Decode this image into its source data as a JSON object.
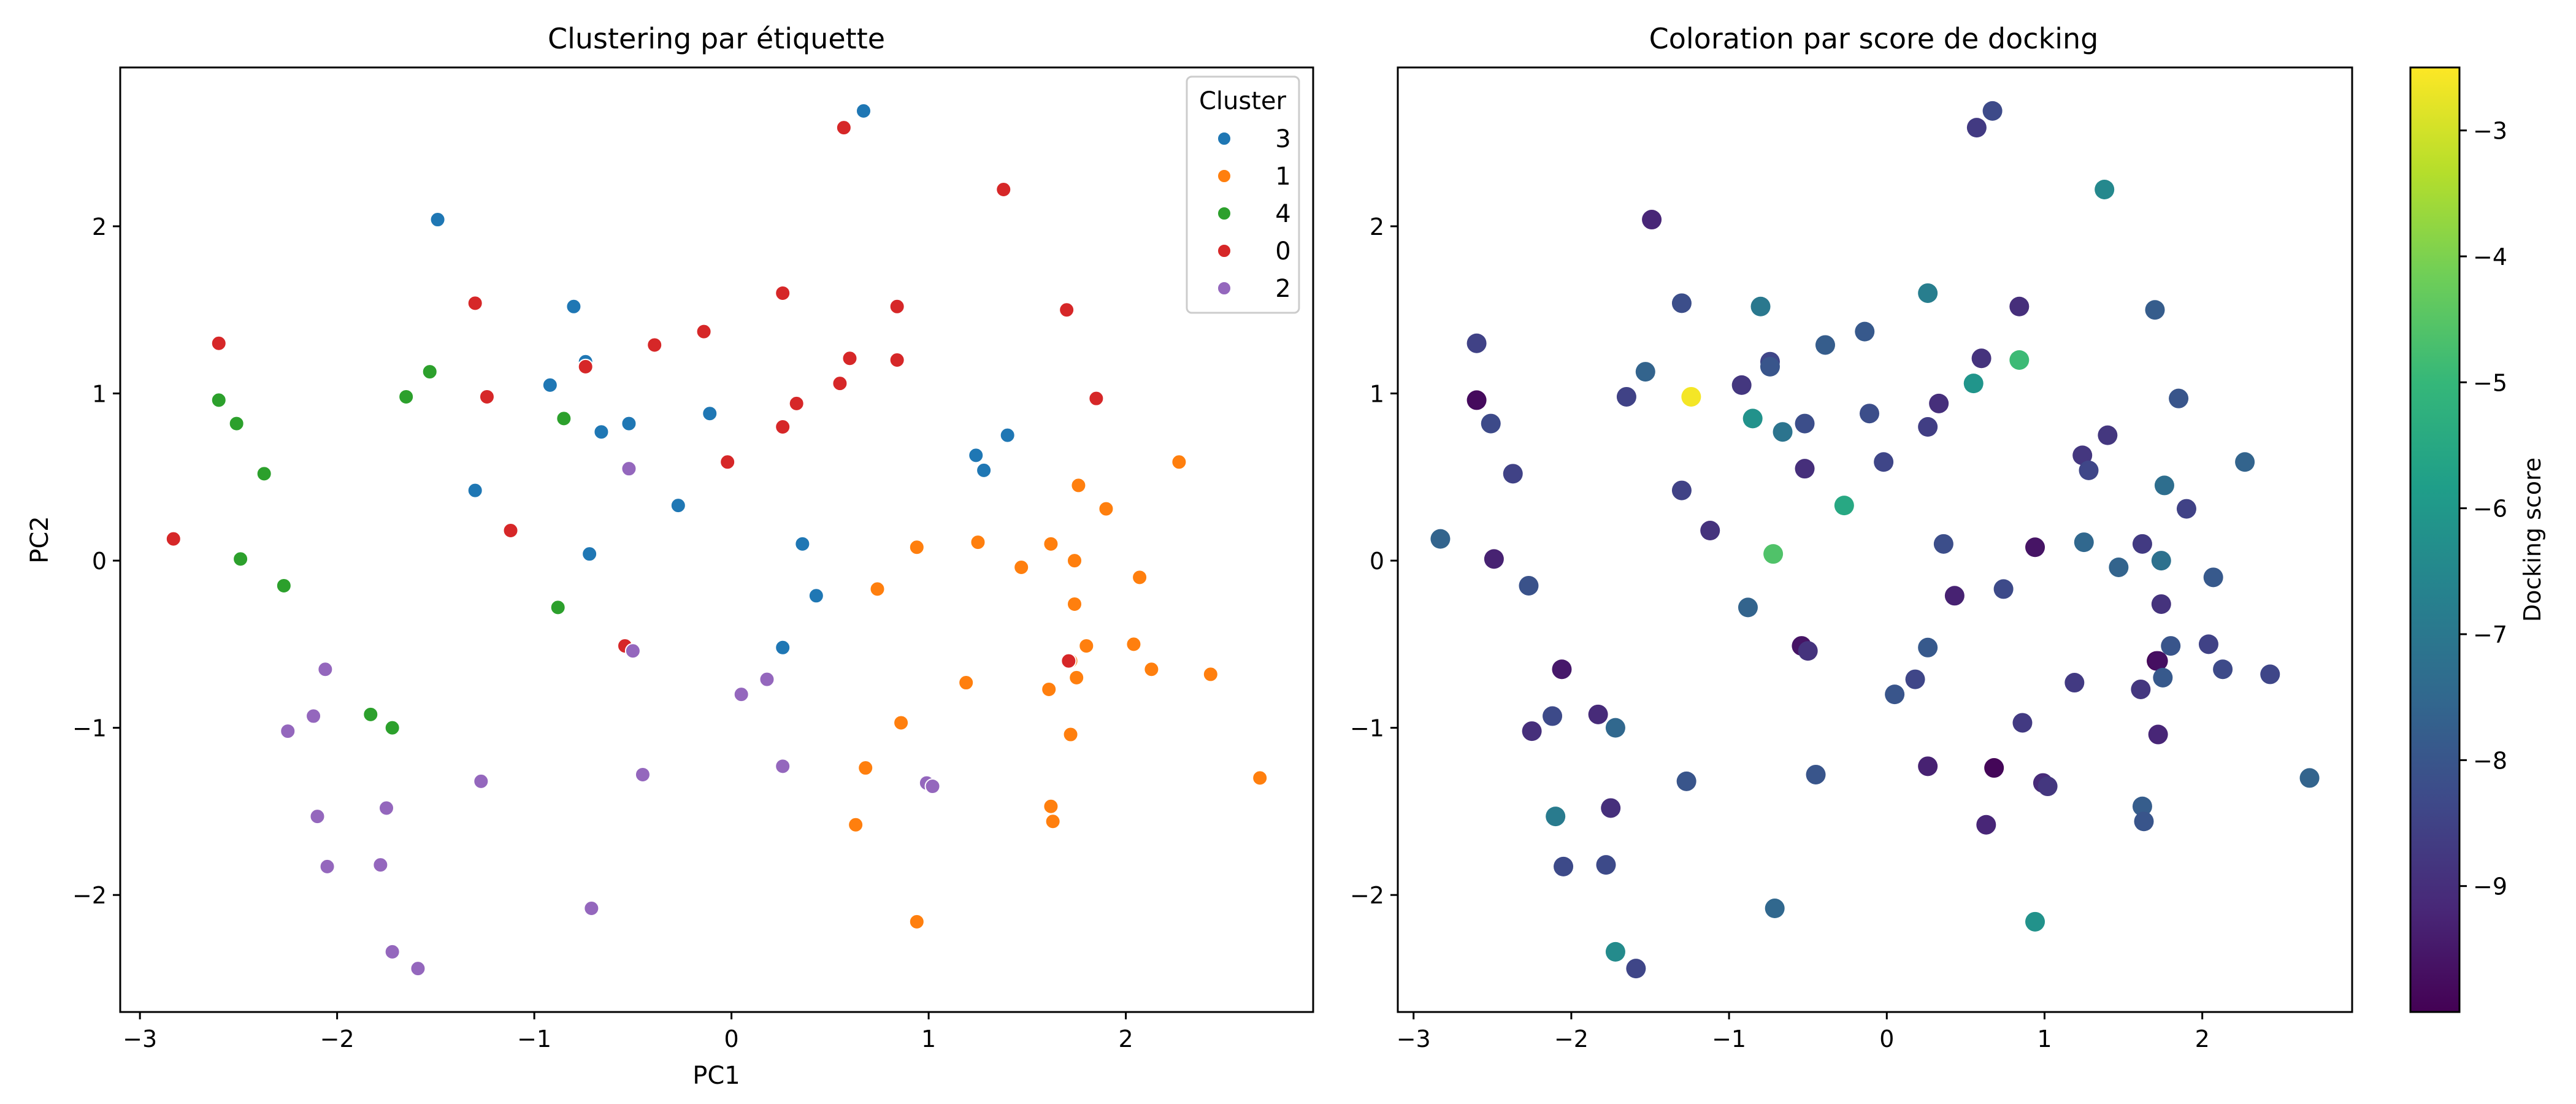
{
  "chart_data": [
    {
      "type": "scatter",
      "title": "Clustering par étiquette",
      "xlabel": "PC1",
      "ylabel": "PC2",
      "xlim": [
        -3.1,
        2.95
      ],
      "ylim": [
        -2.7,
        2.95
      ],
      "xticks": [
        -3,
        -2,
        -1,
        0,
        1,
        2
      ],
      "yticks": [
        -2,
        -1,
        0,
        1,
        2
      ],
      "grid": false,
      "legend": {
        "title": "Cluster",
        "placement": "top-right",
        "order": [
          "3",
          "1",
          "4",
          "0",
          "2"
        ]
      },
      "series": [
        {
          "name": "3",
          "color": "#1f77b4",
          "points": [
            [
              0.67,
              2.69
            ],
            [
              -1.49,
              2.04
            ],
            [
              -0.8,
              1.52
            ],
            [
              -0.74,
              1.19
            ],
            [
              -0.74,
              1.16
            ],
            [
              -0.92,
              1.05
            ],
            [
              -0.66,
              0.77
            ],
            [
              -0.52,
              0.82
            ],
            [
              -0.27,
              0.33
            ],
            [
              -0.11,
              0.88
            ],
            [
              -1.3,
              0.42
            ],
            [
              -0.72,
              0.04
            ],
            [
              0.36,
              0.1
            ],
            [
              0.43,
              -0.21
            ],
            [
              0.26,
              -0.52
            ],
            [
              1.24,
              0.63
            ],
            [
              1.28,
              0.54
            ],
            [
              1.4,
              0.75
            ]
          ]
        },
        {
          "name": "1",
          "color": "#ff7f0e",
          "points": [
            [
              2.27,
              0.59
            ],
            [
              1.76,
              0.45
            ],
            [
              1.9,
              0.31
            ],
            [
              1.25,
              0.11
            ],
            [
              0.94,
              0.08
            ],
            [
              1.62,
              0.1
            ],
            [
              1.74,
              0.0
            ],
            [
              1.47,
              -0.04
            ],
            [
              2.07,
              -0.1
            ],
            [
              0.74,
              -0.17
            ],
            [
              1.74,
              -0.26
            ],
            [
              2.04,
              -0.5
            ],
            [
              1.8,
              -0.51
            ],
            [
              1.72,
              -0.6
            ],
            [
              2.13,
              -0.65
            ],
            [
              2.43,
              -0.68
            ],
            [
              1.75,
              -0.7
            ],
            [
              1.19,
              -0.73
            ],
            [
              1.61,
              -0.77
            ],
            [
              0.86,
              -0.97
            ],
            [
              1.72,
              -1.04
            ],
            [
              0.68,
              -1.24
            ],
            [
              2.68,
              -1.3
            ],
            [
              1.62,
              -1.47
            ],
            [
              1.63,
              -1.56
            ],
            [
              0.63,
              -1.58
            ],
            [
              0.94,
              -2.16
            ]
          ]
        },
        {
          "name": "4",
          "color": "#2ca02c",
          "points": [
            [
              -2.6,
              0.96
            ],
            [
              -2.51,
              0.82
            ],
            [
              -2.37,
              0.52
            ],
            [
              -2.49,
              0.01
            ],
            [
              -2.27,
              -0.15
            ],
            [
              -1.53,
              1.13
            ],
            [
              -1.65,
              0.98
            ],
            [
              -0.85,
              0.85
            ],
            [
              -0.88,
              -0.28
            ],
            [
              -1.83,
              -0.92
            ],
            [
              -1.72,
              -1.0
            ]
          ]
        },
        {
          "name": "0",
          "color": "#d62728",
          "points": [
            [
              0.57,
              2.59
            ],
            [
              1.38,
              2.22
            ],
            [
              -1.3,
              1.54
            ],
            [
              0.26,
              1.6
            ],
            [
              0.84,
              1.52
            ],
            [
              1.7,
              1.5
            ],
            [
              -0.39,
              1.29
            ],
            [
              -0.14,
              1.37
            ],
            [
              0.6,
              1.21
            ],
            [
              0.84,
              1.2
            ],
            [
              0.55,
              1.06
            ],
            [
              -0.74,
              1.16
            ],
            [
              -1.24,
              0.98
            ],
            [
              1.85,
              0.97
            ],
            [
              0.33,
              0.94
            ],
            [
              0.26,
              0.8
            ],
            [
              -0.02,
              0.59
            ],
            [
              -1.12,
              0.18
            ],
            [
              -2.83,
              0.13
            ],
            [
              -2.6,
              1.3
            ],
            [
              -0.54,
              -0.51
            ],
            [
              1.71,
              -0.6
            ]
          ]
        },
        {
          "name": "2",
          "color": "#9467bd",
          "points": [
            [
              -0.52,
              0.55
            ],
            [
              -0.5,
              -0.54
            ],
            [
              -2.06,
              -0.65
            ],
            [
              0.05,
              -0.8
            ],
            [
              0.18,
              -0.71
            ],
            [
              -2.12,
              -0.93
            ],
            [
              -2.25,
              -1.02
            ],
            [
              -1.27,
              -1.32
            ],
            [
              -0.45,
              -1.28
            ],
            [
              0.26,
              -1.23
            ],
            [
              0.99,
              -1.33
            ],
            [
              1.02,
              -1.35
            ],
            [
              -1.75,
              -1.48
            ],
            [
              -2.1,
              -1.53
            ],
            [
              -2.05,
              -1.83
            ],
            [
              -1.78,
              -1.82
            ],
            [
              -0.71,
              -2.08
            ],
            [
              -1.72,
              -2.34
            ],
            [
              -1.59,
              -2.44
            ]
          ]
        }
      ]
    },
    {
      "type": "scatter",
      "title": "Coloration par score de docking",
      "xlim": [
        -3.1,
        2.95
      ],
      "ylim": [
        -2.7,
        2.95
      ],
      "xticks": [
        -3,
        -2,
        -1,
        0,
        1,
        2
      ],
      "yticks": [
        -2,
        -1,
        0,
        1,
        2
      ],
      "grid": false,
      "colorbar": {
        "label": "Docking score",
        "colormap": "viridis",
        "range": [
          -10.0,
          -2.5
        ],
        "ticks": [
          -3,
          -4,
          -5,
          -6,
          -7,
          -8,
          -9
        ],
        "gradient": [
          "#fde725",
          "#b5de2b",
          "#6ece58",
          "#35b779",
          "#1f9e89",
          "#26828e",
          "#31688e",
          "#3e4989",
          "#482878",
          "#440154"
        ]
      },
      "points": [
        [
          0.57,
          2.59,
          -8.7
        ],
        [
          0.67,
          2.69,
          -8.3
        ],
        [
          1.38,
          2.22,
          -6.5
        ],
        [
          -1.49,
          2.04,
          -9.2
        ],
        [
          -1.3,
          1.54,
          -8.2
        ],
        [
          -0.8,
          1.52,
          -7.0
        ],
        [
          0.26,
          1.6,
          -6.8
        ],
        [
          0.84,
          1.52,
          -9.0
        ],
        [
          1.7,
          1.5,
          -7.8
        ],
        [
          -0.39,
          1.29,
          -7.8
        ],
        [
          -0.14,
          1.37,
          -7.9
        ],
        [
          0.6,
          1.21,
          -8.9
        ],
        [
          0.84,
          1.2,
          -4.9
        ],
        [
          -0.74,
          1.19,
          -8.4
        ],
        [
          -0.74,
          1.16,
          -8.0
        ],
        [
          -0.92,
          1.05,
          -8.8
        ],
        [
          0.55,
          1.06,
          -6.1
        ],
        [
          -1.53,
          1.13,
          -7.6
        ],
        [
          -1.65,
          0.98,
          -8.5
        ],
        [
          -1.24,
          0.98,
          -2.6
        ],
        [
          -0.85,
          0.85,
          -6.2
        ],
        [
          -0.66,
          0.77,
          -7.1
        ],
        [
          -0.52,
          0.82,
          -8.2
        ],
        [
          -0.11,
          0.88,
          -8.2
        ],
        [
          0.33,
          0.94,
          -9.0
        ],
        [
          0.26,
          0.8,
          -8.6
        ],
        [
          1.85,
          0.97,
          -8.0
        ],
        [
          -2.6,
          1.3,
          -8.5
        ],
        [
          -2.6,
          0.96,
          -9.8
        ],
        [
          -2.51,
          0.82,
          -8.3
        ],
        [
          -2.37,
          0.52,
          -8.5
        ],
        [
          -1.3,
          0.42,
          -8.5
        ],
        [
          -0.52,
          0.55,
          -9.0
        ],
        [
          -0.27,
          0.33,
          -5.5
        ],
        [
          -0.02,
          0.59,
          -8.4
        ],
        [
          1.24,
          0.63,
          -8.8
        ],
        [
          1.28,
          0.54,
          -8.4
        ],
        [
          1.4,
          0.75,
          -8.8
        ],
        [
          2.27,
          0.59,
          -7.6
        ],
        [
          1.76,
          0.45,
          -7.3
        ],
        [
          1.9,
          0.31,
          -8.5
        ],
        [
          -2.83,
          0.13,
          -7.6
        ],
        [
          -1.12,
          0.18,
          -8.9
        ],
        [
          -2.49,
          0.01,
          -9.3
        ],
        [
          -0.72,
          0.04,
          -4.6
        ],
        [
          0.36,
          0.1,
          -8.2
        ],
        [
          0.94,
          0.08,
          -9.6
        ],
        [
          1.25,
          0.11,
          -7.5
        ],
        [
          1.62,
          0.1,
          -8.7
        ],
        [
          1.74,
          0.0,
          -7.2
        ],
        [
          1.47,
          -0.04,
          -7.6
        ],
        [
          2.07,
          -0.1,
          -7.9
        ],
        [
          -2.27,
          -0.15,
          -8.1
        ],
        [
          -0.88,
          -0.28,
          -7.6
        ],
        [
          0.43,
          -0.21,
          -9.3
        ],
        [
          0.74,
          -0.17,
          -8.3
        ],
        [
          1.74,
          -0.26,
          -8.9
        ],
        [
          -0.54,
          -0.51,
          -9.6
        ],
        [
          -0.5,
          -0.54,
          -8.9
        ],
        [
          0.26,
          -0.52,
          -7.9
        ],
        [
          1.8,
          -0.51,
          -8.0
        ],
        [
          2.04,
          -0.5,
          -8.5
        ],
        [
          1.71,
          -0.6,
          -9.9
        ],
        [
          1.72,
          -0.6,
          -9.7
        ],
        [
          2.13,
          -0.65,
          -8.3
        ],
        [
          2.43,
          -0.68,
          -8.4
        ],
        [
          1.75,
          -0.7,
          -7.9
        ],
        [
          -2.06,
          -0.65,
          -9.5
        ],
        [
          0.05,
          -0.8,
          -8.0
        ],
        [
          0.18,
          -0.71,
          -8.4
        ],
        [
          1.19,
          -0.73,
          -8.7
        ],
        [
          1.61,
          -0.77,
          -8.8
        ],
        [
          -2.12,
          -0.93,
          -8.3
        ],
        [
          -1.83,
          -0.92,
          -9.1
        ],
        [
          -1.72,
          -1.0,
          -7.5
        ],
        [
          -2.25,
          -1.02,
          -9.0
        ],
        [
          0.86,
          -0.97,
          -8.7
        ],
        [
          1.72,
          -1.04,
          -9.2
        ],
        [
          -1.27,
          -1.32,
          -8.0
        ],
        [
          -0.45,
          -1.28,
          -8.0
        ],
        [
          0.26,
          -1.23,
          -9.3
        ],
        [
          0.68,
          -1.24,
          -9.9
        ],
        [
          0.99,
          -1.33,
          -9.1
        ],
        [
          1.02,
          -1.35,
          -8.8
        ],
        [
          2.68,
          -1.3,
          -7.6
        ],
        [
          -1.75,
          -1.48,
          -9.0
        ],
        [
          -2.1,
          -1.53,
          -6.9
        ],
        [
          1.62,
          -1.47,
          -7.8
        ],
        [
          1.63,
          -1.56,
          -8.0
        ],
        [
          0.63,
          -1.58,
          -9.2
        ],
        [
          -2.05,
          -1.83,
          -8.3
        ],
        [
          -1.78,
          -1.82,
          -8.3
        ],
        [
          -0.71,
          -2.08,
          -7.5
        ],
        [
          0.94,
          -2.16,
          -6.2
        ],
        [
          -1.72,
          -2.34,
          -6.4
        ],
        [
          -1.59,
          -2.44,
          -8.4
        ]
      ]
    }
  ]
}
